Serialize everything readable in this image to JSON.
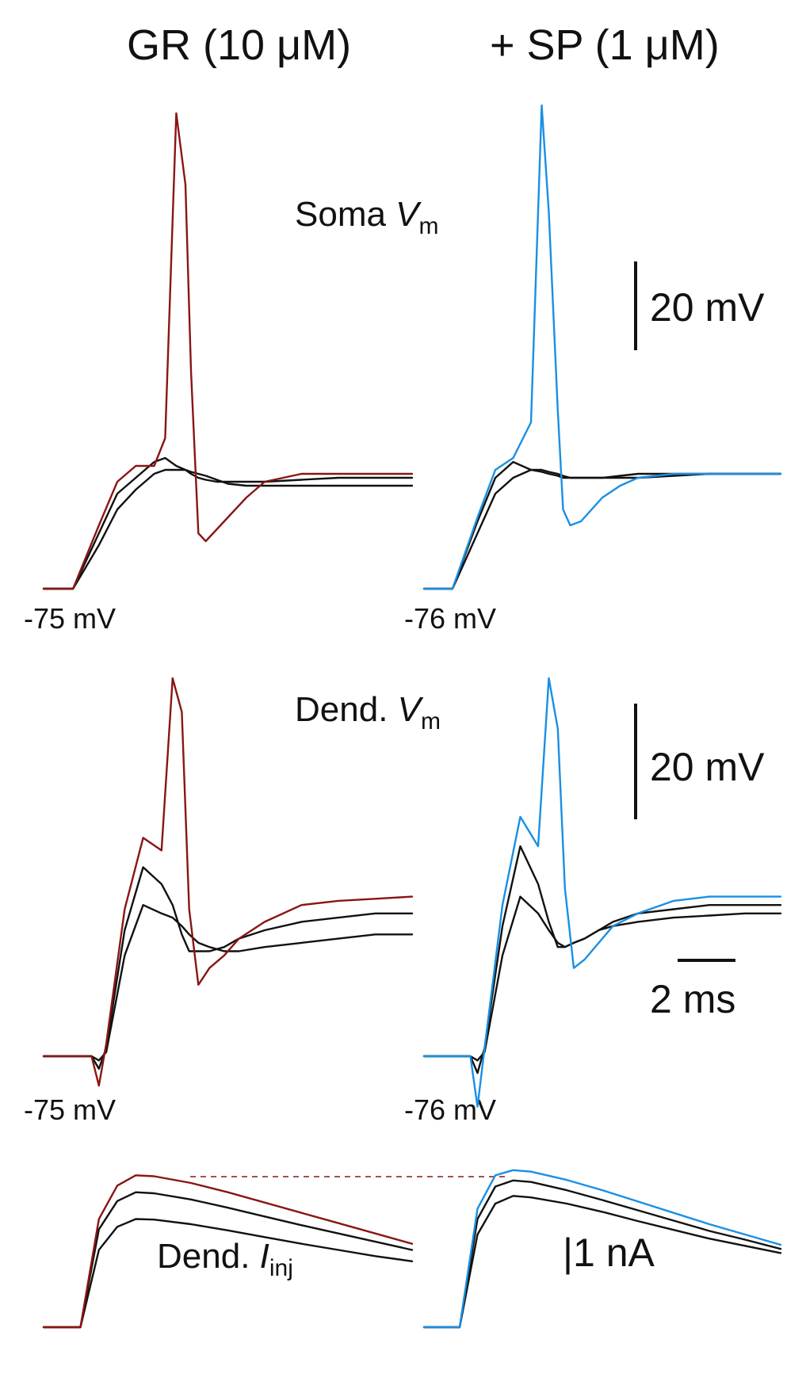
{
  "headers": {
    "left": "GR (10 μM)",
    "right": "+ SP (1 μM)"
  },
  "labels": {
    "soma_main": "Soma ",
    "soma_var": "V",
    "soma_sub": "m",
    "dend_main": "Dend. ",
    "dend_var": "V",
    "dend_sub": "m",
    "iinj_main": "Dend. ",
    "iinj_var": "I",
    "iinj_sub": "inj"
  },
  "scalebars": {
    "soma_voltage": "20 mV",
    "dend_voltage": "20 mV",
    "time": "2 ms",
    "current": "|1 nA"
  },
  "baselines": {
    "soma_left": "-75 mV",
    "soma_right": "-76 mV",
    "dend_left": "-75 mV",
    "dend_right": "-76 mV"
  },
  "colors": {
    "GR": "#8a1515",
    "SP": "#1a8fe3",
    "subthreshold": "#111111"
  },
  "chart_data": [
    {
      "type": "line",
      "panel": "Soma Vm",
      "condition": "GR (10 μM)",
      "baseline": "-75 mV",
      "x": [
        0,
        0.8,
        1.5,
        2.0,
        2.5,
        3.0,
        3.3,
        3.6,
        3.85,
        4.0,
        4.2,
        4.4,
        4.7,
        5.0,
        5.5,
        6.0,
        7.0,
        8.0,
        9.0,
        10.0
      ],
      "series": [
        {
          "values": [
            0,
            0,
            16,
            27,
            31,
            31,
            38,
            120,
            102,
            55,
            14,
            12,
            15,
            18,
            23,
            27,
            29,
            29,
            29,
            29
          ]
        },
        {
          "values": [
            0,
            0,
            14,
            24,
            28,
            32,
            33,
            31,
            30,
            29,
            28,
            27.5,
            27,
            27,
            27,
            27,
            27.5,
            28,
            28,
            28
          ]
        },
        {
          "values": [
            0,
            0,
            11,
            20,
            25,
            29,
            30,
            30,
            30,
            29.5,
            29,
            28.5,
            27.5,
            26.5,
            26,
            26,
            26,
            26,
            26,
            26
          ]
        }
      ]
    },
    {
      "type": "line",
      "panel": "Soma Vm",
      "condition": "+ SP (1 μM)",
      "baseline": "-76 mV",
      "x": [
        0,
        0.8,
        1.5,
        2.0,
        2.5,
        3.0,
        3.3,
        3.5,
        3.75,
        3.9,
        4.1,
        4.4,
        4.7,
        5.0,
        5.5,
        6.0,
        7.0,
        8.0,
        9.0,
        10.0
      ],
      "series": [
        {
          "values": [
            0,
            0,
            18,
            30,
            33,
            42,
            122,
            95,
            45,
            20,
            16,
            17,
            20,
            23,
            26,
            28,
            29,
            29,
            29,
            29
          ]
        },
        {
          "values": [
            0,
            0,
            17,
            28,
            32,
            30,
            29.5,
            29,
            28.5,
            28,
            28,
            28,
            28,
            28,
            28.5,
            29,
            29,
            29,
            29,
            29
          ]
        },
        {
          "values": [
            0,
            0,
            14,
            24,
            28,
            30,
            30,
            29.5,
            29,
            28.5,
            28,
            28,
            28,
            28,
            28,
            28,
            28.5,
            29,
            29,
            29
          ]
        }
      ]
    },
    {
      "type": "line",
      "panel": "Dend. Vm",
      "condition": "GR (10 μM)",
      "baseline": "-75 mV",
      "x": [
        0,
        1.3,
        1.5,
        1.7,
        2.2,
        2.7,
        3.2,
        3.5,
        3.75,
        3.95,
        4.2,
        4.5,
        4.9,
        5.3,
        6.0,
        7.0,
        8.0,
        9.0,
        10.0
      ],
      "series": [
        {
          "values": [
            0,
            0,
            -7,
            3,
            35,
            52,
            49,
            90,
            82,
            35,
            17,
            21,
            24,
            28,
            32,
            36,
            37,
            37.5,
            38
          ]
        },
        {
          "values": [
            0,
            0,
            -3,
            2,
            30,
            45,
            41,
            36,
            29,
            25,
            25,
            25,
            26,
            28,
            30,
            32,
            33,
            34,
            34
          ]
        },
        {
          "values": [
            0,
            0,
            -1,
            1,
            24,
            36,
            34,
            33,
            31,
            29,
            27,
            26,
            25,
            25,
            26,
            27,
            28,
            29,
            29
          ]
        }
      ]
    },
    {
      "type": "line",
      "panel": "Dend. Vm",
      "condition": "+ SP (1 μM)",
      "baseline": "-76 mV",
      "x": [
        0,
        1.3,
        1.5,
        1.7,
        2.2,
        2.7,
        3.2,
        3.5,
        3.75,
        3.95,
        4.2,
        4.5,
        4.9,
        5.3,
        6.0,
        7.0,
        8.0,
        9.0,
        10.0
      ],
      "series": [
        {
          "values": [
            0,
            0,
            -12,
            2,
            36,
            57,
            50,
            90,
            78,
            40,
            21,
            23,
            27,
            31,
            34,
            37,
            38,
            38,
            38
          ]
        },
        {
          "values": [
            0,
            0,
            -4,
            2,
            31,
            50,
            41,
            32,
            26,
            26,
            27,
            28,
            30,
            32,
            34,
            35,
            36,
            36,
            36
          ]
        },
        {
          "values": [
            0,
            0,
            -1,
            1,
            24,
            38,
            34,
            30,
            27,
            26,
            27,
            28,
            30,
            31,
            32,
            33,
            33.5,
            34,
            34
          ]
        }
      ]
    },
    {
      "type": "line",
      "panel": "Dend. Iinj",
      "condition": "GR (10 μM)",
      "x": [
        0,
        1.0,
        1.5,
        2.0,
        2.5,
        3.0,
        4.0,
        5.0,
        6.0,
        7.0,
        8.0,
        9.0,
        10.0
      ],
      "series": [
        {
          "values": [
            0,
            0,
            2.1,
            2.75,
            2.95,
            2.93,
            2.8,
            2.62,
            2.42,
            2.22,
            2.02,
            1.82,
            1.62
          ]
        },
        {
          "values": [
            0,
            0,
            1.9,
            2.45,
            2.62,
            2.6,
            2.48,
            2.32,
            2.15,
            1.98,
            1.82,
            1.66,
            1.5
          ]
        },
        {
          "values": [
            0,
            0,
            1.5,
            1.95,
            2.1,
            2.09,
            2.0,
            1.88,
            1.75,
            1.62,
            1.5,
            1.38,
            1.28
          ]
        }
      ]
    },
    {
      "type": "line",
      "panel": "Dend. Iinj",
      "condition": "+ SP (1 μM)",
      "x": [
        0,
        1.0,
        1.5,
        2.0,
        2.5,
        3.0,
        4.0,
        5.0,
        6.0,
        7.0,
        8.0,
        9.0,
        10.0
      ],
      "series": [
        {
          "values": [
            0,
            0,
            2.3,
            2.95,
            3.05,
            3.02,
            2.86,
            2.66,
            2.44,
            2.22,
            2.0,
            1.8,
            1.6
          ]
        },
        {
          "values": [
            0,
            0,
            2.1,
            2.73,
            2.85,
            2.82,
            2.66,
            2.47,
            2.27,
            2.07,
            1.87,
            1.7,
            1.52
          ]
        },
        {
          "values": [
            0,
            0,
            1.8,
            2.4,
            2.55,
            2.52,
            2.4,
            2.24,
            2.06,
            1.89,
            1.72,
            1.58,
            1.44
          ]
        }
      ]
    }
  ]
}
